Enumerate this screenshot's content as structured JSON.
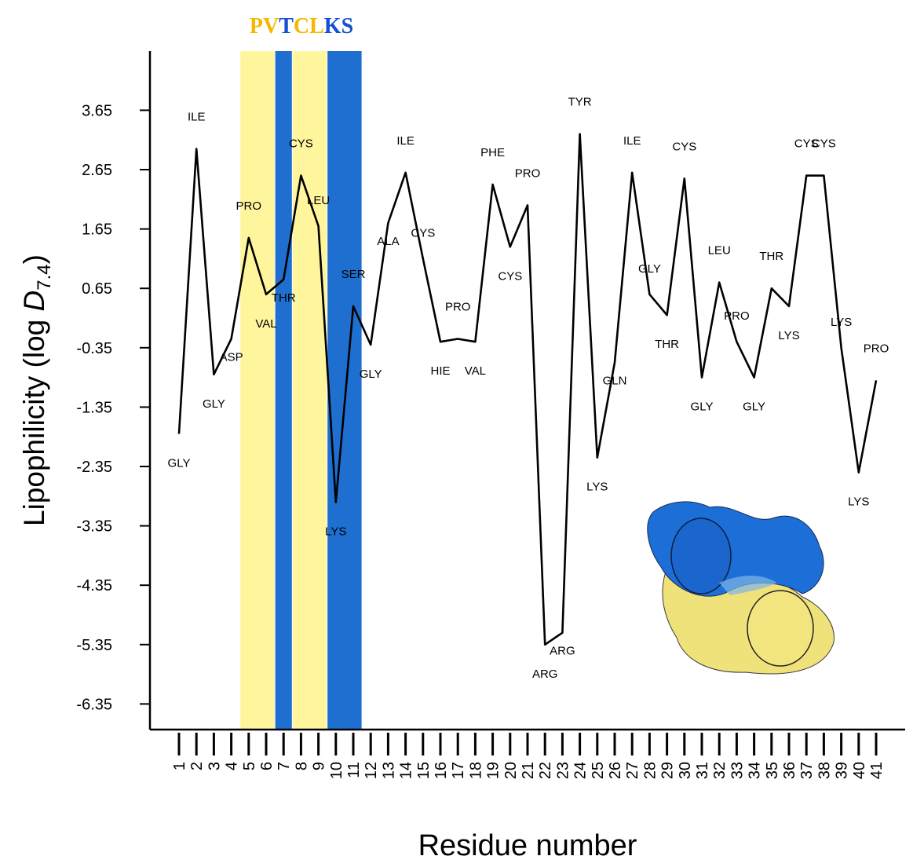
{
  "chart_data": {
    "type": "line",
    "xlabel": "Residue number",
    "ylabel_main": "Lipophilicity (log ",
    "ylabel_var": "D",
    "ylabel_sub": "7.4",
    "ylabel_close": ")",
    "x": [
      1,
      2,
      3,
      4,
      5,
      6,
      7,
      8,
      9,
      10,
      11,
      12,
      13,
      14,
      15,
      16,
      17,
      18,
      19,
      20,
      21,
      22,
      23,
      24,
      25,
      26,
      27,
      28,
      29,
      30,
      31,
      32,
      33,
      34,
      35,
      36,
      37,
      38,
      39,
      40,
      41
    ],
    "x_ticks": [
      "1",
      "2",
      "3",
      "4",
      "5",
      "6",
      "7",
      "8",
      "9",
      "10",
      "11",
      "12",
      "13",
      "14",
      "15",
      "16",
      "17",
      "18",
      "19",
      "20",
      "21",
      "22",
      "23",
      "24",
      "25",
      "26",
      "27",
      "28",
      "29",
      "30",
      "31",
      "32",
      "33",
      "34",
      "35",
      "36",
      "37",
      "38",
      "39",
      "40",
      "41"
    ],
    "y_ticks": [
      "3.65",
      "2.65",
      "1.65",
      "0.65",
      "-0.35",
      "-1.35",
      "-2.35",
      "-3.35",
      "-4.35",
      "-5.35",
      "-6.35"
    ],
    "ylim": [
      -6.7,
      4.7
    ],
    "series": [
      {
        "values": [
          -1.8,
          3.0,
          -0.8,
          -0.2,
          1.5,
          0.55,
          0.8,
          2.55,
          1.7,
          -2.95,
          0.35,
          -0.3,
          1.75,
          2.6,
          1.15,
          -0.25,
          -0.2,
          -0.25,
          2.4,
          1.35,
          2.05,
          -5.35,
          -5.15,
          3.25,
          -2.2,
          -0.6,
          2.6,
          0.55,
          0.2,
          2.5,
          -0.85,
          0.75,
          -0.25,
          -0.85,
          0.65,
          0.35,
          2.55,
          2.55,
          -0.35,
          -2.45,
          -0.9
        ]
      }
    ],
    "residue_names": [
      "GLY",
      "ILE",
      "GLY",
      "ASP",
      "PRO",
      "VAL",
      "THR",
      "CYS",
      "LEU",
      "LYS",
      "SER",
      "GLY",
      "ALA",
      "ILE",
      "CYS",
      "HIE",
      "PRO",
      "VAL",
      "PHE",
      "CYS",
      "PRO",
      "ARG",
      "ARG",
      "TYR",
      "LYS",
      "GLN",
      "ILE",
      "GLY",
      "THR",
      "CYS",
      "GLY",
      "LEU",
      "PRO",
      "GLY",
      "THR",
      "LYS",
      "CYS",
      "CYS",
      "LYS",
      "LYS",
      "PRO"
    ],
    "highlight_bands": [
      {
        "from": 5,
        "to": 6,
        "color": "#fff59d"
      },
      {
        "from": 7,
        "to": 7,
        "color": "#1f6fd0"
      },
      {
        "from": 8,
        "to": 9,
        "color": "#fff59d"
      },
      {
        "from": 10,
        "to": 11,
        "color": "#1f6fd0"
      }
    ],
    "sequence_motif": [
      {
        "letter": "P",
        "color": "#f5b800"
      },
      {
        "letter": "V",
        "color": "#f5b800"
      },
      {
        "letter": "T",
        "color": "#1550d4"
      },
      {
        "letter": "C",
        "color": "#f5b800"
      },
      {
        "letter": "L",
        "color": "#f5b800"
      },
      {
        "letter": "K",
        "color": "#1550d4"
      },
      {
        "letter": "S",
        "color": "#1550d4"
      }
    ],
    "grid": false,
    "inset": {
      "description_icon": "molecular-surface-icon",
      "colors": [
        "#1c6fd6",
        "#f0e27a"
      ]
    }
  }
}
